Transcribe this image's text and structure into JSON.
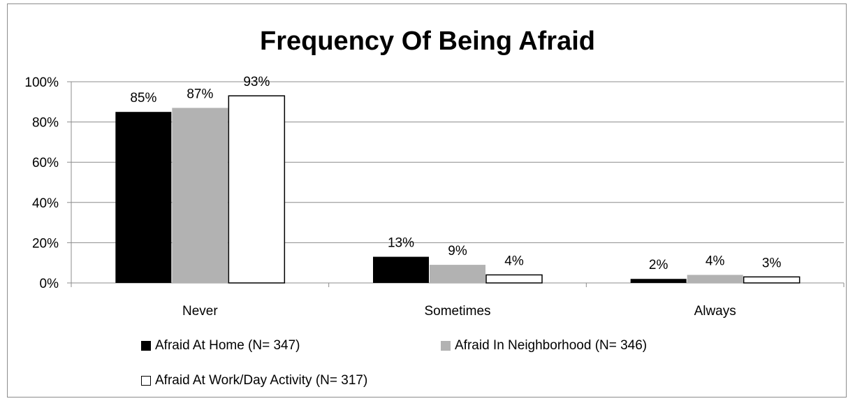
{
  "chart_data": {
    "type": "bar",
    "title": "Frequency Of Being Afraid",
    "categories": [
      "Never",
      "Sometimes",
      "Always"
    ],
    "ylim": [
      0,
      100
    ],
    "yticks": [
      "0%",
      "20%",
      "40%",
      "60%",
      "80%",
      "100%"
    ],
    "grid": true,
    "legend_position": "bottom",
    "series": [
      {
        "name": "Afraid At Home (N= 347)",
        "values": [
          85,
          13,
          2
        ],
        "labels": [
          "85%",
          "13%",
          "2%"
        ],
        "color": "#000000"
      },
      {
        "name": "Afraid In Neighborhood (N= 346)",
        "values": [
          87,
          9,
          4
        ],
        "labels": [
          "87%",
          "9%",
          "4%"
        ],
        "color": "#b2b2b2"
      },
      {
        "name": "Afraid At Work/Day Activity (N= 317)",
        "values": [
          93,
          4,
          3
        ],
        "labels": [
          "93%",
          "4%",
          "3%"
        ],
        "color": "#ffffff"
      }
    ]
  }
}
